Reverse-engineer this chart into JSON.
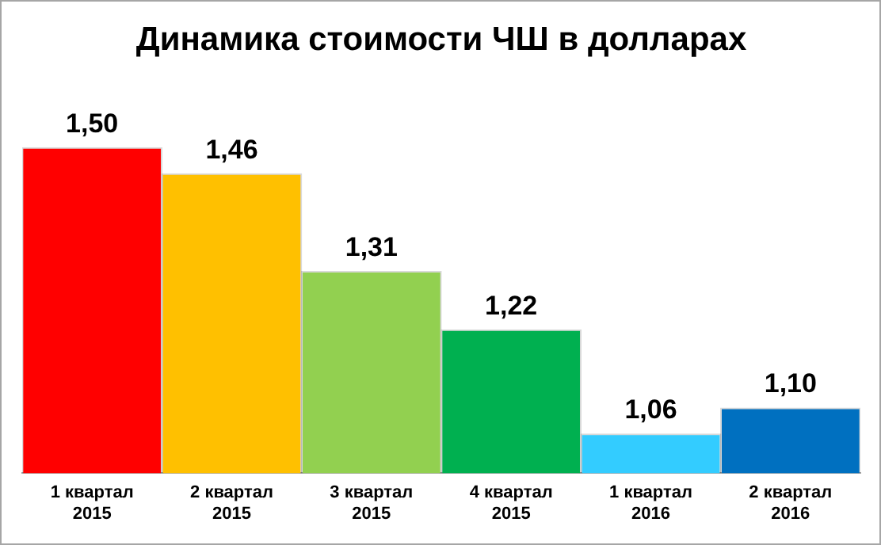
{
  "chart_data": {
    "type": "bar",
    "title": "Динамика стоимости ЧШ в долларах",
    "categories": [
      "1 квартал 2015",
      "2 квартал 2015",
      "3 квартал 2015",
      "4 квартал 2015",
      "1 квартал 2016",
      "2 квартал 2016"
    ],
    "values": [
      1.5,
      1.46,
      1.31,
      1.22,
      1.06,
      1.1
    ],
    "value_labels": [
      "1,50",
      "1,46",
      "1,31",
      "1,22",
      "1,06",
      "1,10"
    ],
    "colors": [
      "#ff0000",
      "#ffc000",
      "#92d050",
      "#00b050",
      "#33ccff",
      "#0070c0"
    ],
    "grid": false,
    "legend": false
  }
}
